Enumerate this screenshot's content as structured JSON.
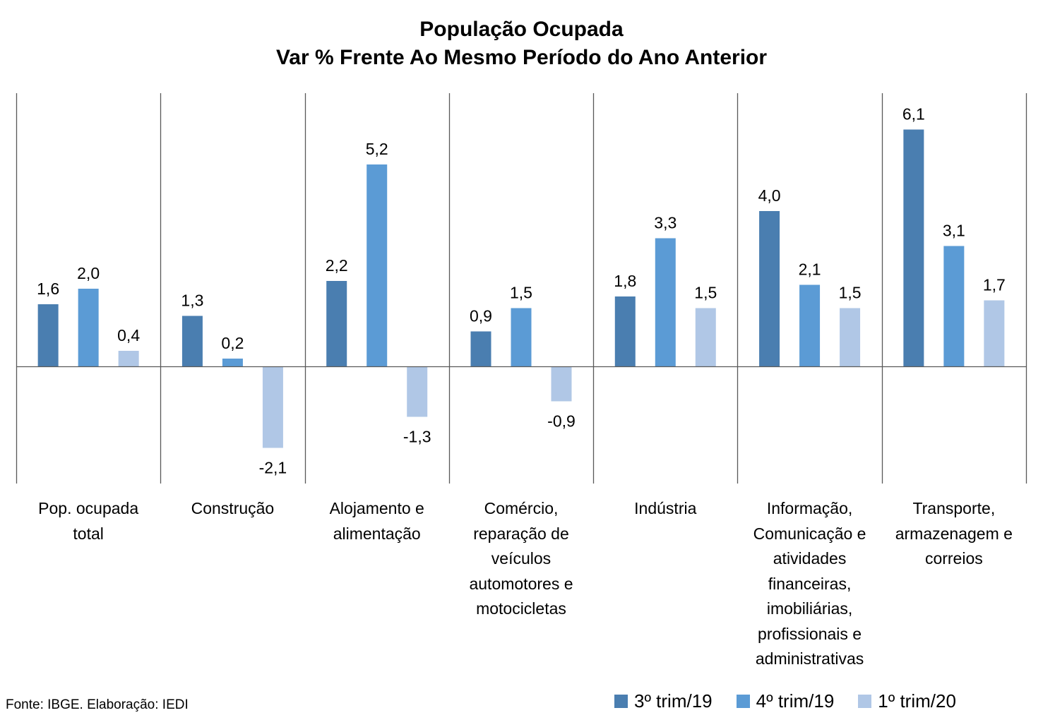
{
  "chart_data": {
    "type": "bar",
    "title": [
      "População Ocupada",
      "Var % Frente Ao Mesmo Período do Ano Anterior"
    ],
    "categories": [
      [
        "Pop. ocupada",
        "total"
      ],
      [
        "Construção"
      ],
      [
        "Alojamento e",
        "alimentação"
      ],
      [
        "Comércio,",
        "reparação de",
        "veículos",
        "automotores e",
        "motocicletas"
      ],
      [
        "Indústria"
      ],
      [
        "Informação,",
        "Comunicação e",
        "atividades",
        "financeiras,",
        "imobiliárias,",
        "profissionais e",
        "administrativas"
      ],
      [
        "Transporte,",
        "armazenagem e",
        "correios"
      ]
    ],
    "series": [
      {
        "name": "3º trim/19",
        "color": "#4a7eb0",
        "values": [
          1.6,
          1.3,
          2.2,
          0.9,
          1.8,
          4.0,
          6.1
        ],
        "labels": [
          "1,6",
          "1,3",
          "2,2",
          "0,9",
          "1,8",
          "4,0",
          "6,1"
        ]
      },
      {
        "name": "4º trim/19",
        "color": "#5b9bd5",
        "values": [
          2.0,
          0.2,
          5.2,
          1.5,
          3.3,
          2.1,
          3.1
        ],
        "labels": [
          "2,0",
          "0,2",
          "5,2",
          "1,5",
          "3,3",
          "2,1",
          "3,1"
        ]
      },
      {
        "name": "1º trim/20",
        "color": "#b0c7e6",
        "values": [
          0.4,
          -2.1,
          -1.3,
          -0.9,
          1.5,
          1.5,
          1.7
        ],
        "labels": [
          "0,4",
          "-2,1",
          "-1,3",
          "-0,9",
          "1,5",
          "1,5",
          "1,7"
        ]
      }
    ],
    "ylim": [
      -3,
      7.2
    ],
    "grid": false,
    "legend_position": "bottom-right"
  },
  "source": "Fonte: IBGE. Elaboração: IEDI"
}
